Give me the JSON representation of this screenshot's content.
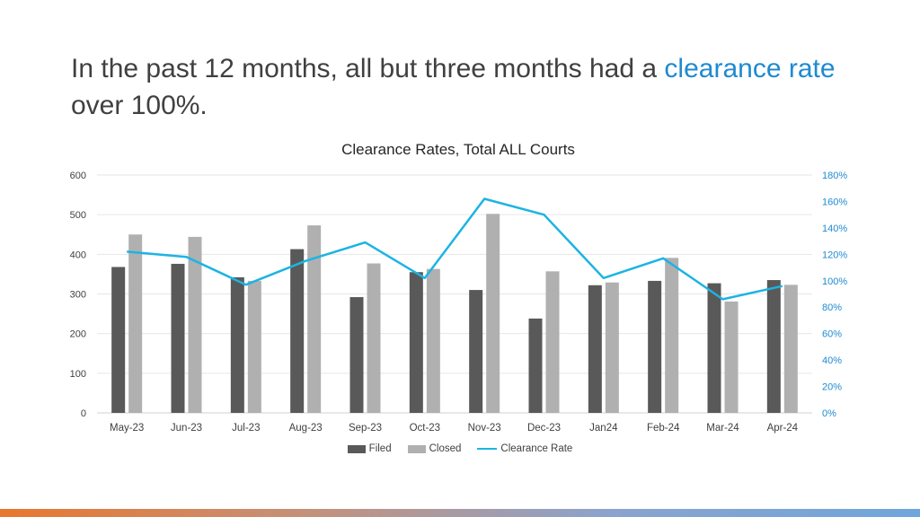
{
  "headline": {
    "part1": "In the past 12 months, all but three months had a ",
    "accent": "clearance rate",
    "part2": " over 100%."
  },
  "colors": {
    "filed": "#595959",
    "closed": "#b0b0b0",
    "rate": "#1cb4e3",
    "accent": "#1f8ad0",
    "band": [
      "#e8772e",
      "#c5917a",
      "#8aa3cf",
      "#6fa6dc"
    ]
  },
  "chart_data": {
    "type": "bar",
    "title": "Clearance Rates, Total ALL Courts",
    "categories": [
      "May-23",
      "Jun-23",
      "Jul-23",
      "Aug-23",
      "Sep-23",
      "Oct-23",
      "Nov-23",
      "Dec-23",
      "Jan24",
      "Feb-24",
      "Mar-24",
      "Apr-24"
    ],
    "series": [
      {
        "name": "Filed",
        "kind": "bar",
        "axis": "left",
        "values": [
          368,
          376,
          342,
          413,
          292,
          355,
          310,
          238,
          322,
          333,
          327,
          335
        ]
      },
      {
        "name": "Closed",
        "kind": "bar",
        "axis": "left",
        "values": [
          450,
          444,
          333,
          473,
          377,
          363,
          502,
          357,
          329,
          391,
          281,
          323
        ]
      },
      {
        "name": "Clearance Rate",
        "kind": "line",
        "axis": "right",
        "values": [
          122,
          118,
          97,
          115,
          129,
          102,
          162,
          150,
          102,
          117,
          86,
          96
        ]
      }
    ],
    "ylim": [
      0,
      600
    ],
    "yticks": [
      "0",
      "100",
      "200",
      "300",
      "400",
      "500",
      "600"
    ],
    "y2lim": [
      0,
      180
    ],
    "y2ticks": [
      "0%",
      "20%",
      "40%",
      "60%",
      "80%",
      "100%",
      "120%",
      "140%",
      "160%",
      "180%"
    ],
    "grid": true,
    "legend": "bottom-center"
  }
}
